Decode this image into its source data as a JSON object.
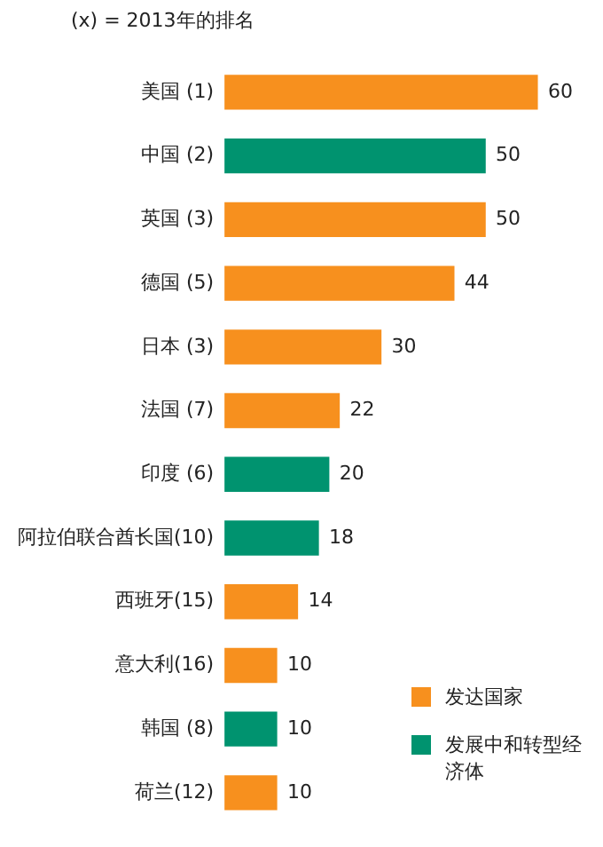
{
  "chart_data": {
    "type": "bar",
    "orientation": "horizontal",
    "subtitle": "(x) =  2013年的排名",
    "categories": [
      "美国 (1)",
      "中国 (2)",
      "英国 (3)",
      "德国 (5)",
      "日本 (3)",
      "法国 (7)",
      "印度 (6)",
      "阿拉伯联合酋长国(10)",
      "西班牙(15)",
      "意大利(16)",
      "韩国 (8)",
      "荷兰(12)"
    ],
    "series": [
      {
        "name": "发达国家",
        "color": "#f7901e",
        "values": [
          60,
          null,
          50,
          44,
          30,
          22,
          null,
          null,
          14,
          10,
          null,
          10
        ]
      },
      {
        "name": "发展中和转型经济体",
        "color": "#00936f",
        "values": [
          null,
          50,
          null,
          null,
          null,
          null,
          20,
          18,
          null,
          null,
          10,
          null
        ]
      }
    ],
    "stacked": true,
    "data_labels": true,
    "legend": "bottom right",
    "grid": false
  }
}
